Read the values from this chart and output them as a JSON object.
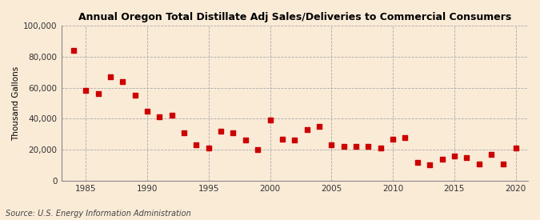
{
  "title": "Annual Oregon Total Distillate Adj Sales/Deliveries to Commercial Consumers",
  "ylabel": "Thousand Gallons",
  "source": "Source: U.S. Energy Information Administration",
  "background_color": "#faebd7",
  "plot_background_color": "#faebd7",
  "marker_color": "#cc0000",
  "marker_size": 16,
  "ylim": [
    0,
    100000
  ],
  "yticks": [
    0,
    20000,
    40000,
    60000,
    80000,
    100000
  ],
  "ytick_labels": [
    "0",
    "20,000",
    "40,000",
    "60,000",
    "80,000",
    "100,000"
  ],
  "xticks": [
    1985,
    1990,
    1995,
    2000,
    2005,
    2010,
    2015,
    2020
  ],
  "years": [
    1984,
    1985,
    1986,
    1987,
    1988,
    1989,
    1990,
    1991,
    1992,
    1993,
    1994,
    1995,
    1996,
    1997,
    1998,
    1999,
    2000,
    2001,
    2002,
    2003,
    2004,
    2005,
    2006,
    2007,
    2008,
    2009,
    2010,
    2011,
    2012,
    2013,
    2014,
    2015,
    2016,
    2017,
    2018,
    2019,
    2020
  ],
  "values": [
    84000,
    58000,
    56000,
    67000,
    64000,
    55000,
    45000,
    41000,
    42000,
    31000,
    23000,
    21000,
    32000,
    31000,
    26000,
    20000,
    39000,
    27000,
    26000,
    33000,
    35000,
    23000,
    22000,
    22000,
    22000,
    21000,
    27000,
    28000,
    12000,
    10000,
    14000,
    16000,
    15000,
    11000,
    17000,
    11000,
    21000
  ],
  "xlim": [
    1983,
    2021
  ],
  "title_fontsize": 9,
  "axis_fontsize": 7.5,
  "source_fontsize": 7
}
